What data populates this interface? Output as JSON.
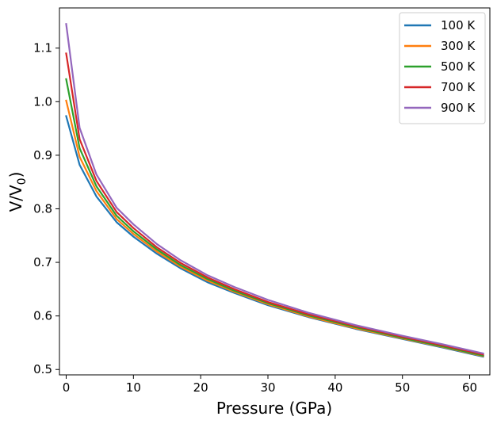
{
  "chart_data": {
    "type": "line",
    "title": "",
    "xlabel": "Pressure (GPa)",
    "ylabel_main": "V/V",
    "ylabel_sub": "0",
    "xlim": [
      -1,
      63
    ],
    "ylim": [
      0.49,
      1.175
    ],
    "x_ticks": [
      0,
      10,
      20,
      30,
      40,
      50,
      60
    ],
    "y_ticks": [
      0.5,
      0.6,
      0.7,
      0.8,
      0.9,
      1.0,
      1.1
    ],
    "x_tick_labels": [
      "0",
      "10",
      "20",
      "30",
      "40",
      "50",
      "60"
    ],
    "y_tick_labels": [
      "0.5",
      "0.6",
      "0.7",
      "0.8",
      "0.9",
      "1.0",
      "1.1"
    ],
    "legend_position": "top-right",
    "x": [
      0,
      2,
      4.5,
      7.5,
      10,
      13.5,
      17,
      21,
      25,
      30,
      36,
      43,
      50,
      56,
      62
    ],
    "series": [
      {
        "name": "100 K",
        "color": "#1f77b4",
        "values": [
          0.973,
          0.882,
          0.823,
          0.775,
          0.748,
          0.716,
          0.689,
          0.663,
          0.643,
          0.62,
          0.598,
          0.576,
          0.557,
          0.541,
          0.524
        ]
      },
      {
        "name": "300 K",
        "color": "#ff7f0e",
        "values": [
          1.002,
          0.897,
          0.833,
          0.781,
          0.753,
          0.72,
          0.692,
          0.666,
          0.645,
          0.622,
          0.599,
          0.577,
          0.558,
          0.542,
          0.525
        ]
      },
      {
        "name": "500 K",
        "color": "#2ca02c",
        "values": [
          1.042,
          0.913,
          0.842,
          0.787,
          0.758,
          0.724,
          0.695,
          0.669,
          0.647,
          0.624,
          0.601,
          0.579,
          0.559,
          0.543,
          0.526
        ]
      },
      {
        "name": "700 K",
        "color": "#d62728",
        "values": [
          1.09,
          0.93,
          0.852,
          0.794,
          0.764,
          0.728,
          0.699,
          0.672,
          0.65,
          0.626,
          0.603,
          0.581,
          0.561,
          0.545,
          0.528
        ]
      },
      {
        "name": "900 K",
        "color": "#9467bd",
        "values": [
          1.145,
          0.951,
          0.864,
          0.802,
          0.771,
          0.734,
          0.704,
          0.676,
          0.654,
          0.63,
          0.606,
          0.583,
          0.563,
          0.547,
          0.53
        ]
      }
    ]
  }
}
